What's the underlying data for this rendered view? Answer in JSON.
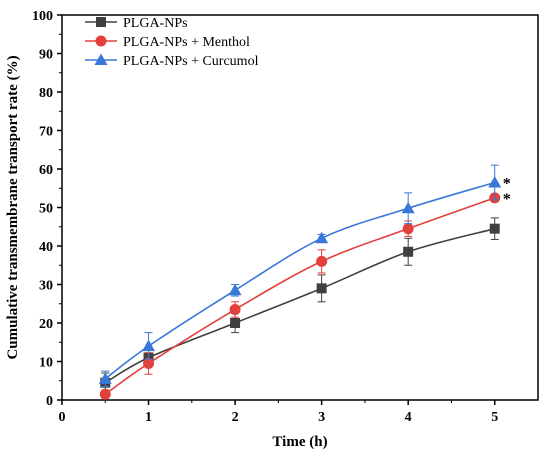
{
  "chart_data": {
    "type": "line",
    "xlabel": "Time (h)",
    "ylabel": "Cumulative transmembrane transport rate (%)",
    "xlim": [
      0,
      5.5
    ],
    "ylim": [
      0,
      100
    ],
    "x_ticks": [
      "0",
      "1",
      "2",
      "3",
      "4",
      "5"
    ],
    "y_ticks": [
      "0",
      "10",
      "20",
      "30",
      "40",
      "50",
      "60",
      "70",
      "80",
      "90",
      "100"
    ],
    "grid": false,
    "legend_position": "top-left",
    "series": [
      {
        "name": "PLGA-NPs",
        "color": "#404040",
        "marker": "square",
        "x": [
          0.5,
          1,
          2,
          3,
          4,
          5
        ],
        "y": [
          4.5,
          11,
          20,
          29,
          38.5,
          44.5
        ],
        "err": [
          2.5,
          2,
          2.5,
          3.5,
          3.5,
          2.8
        ]
      },
      {
        "name": "PLGA-NPs + Menthol",
        "color": "#e3403c",
        "marker": "circle",
        "x": [
          0.5,
          1,
          2,
          3,
          4,
          5
        ],
        "y": [
          1.5,
          9.5,
          23.5,
          36,
          44.5,
          52.5
        ],
        "err": [
          1,
          2.8,
          2,
          3,
          2,
          0.8
        ]
      },
      {
        "name": "PLGA-NPs + Curcumol",
        "color": "#3a78d8",
        "marker": "triangle",
        "x": [
          0.5,
          1,
          2,
          3,
          4,
          5
        ],
        "y": [
          5.5,
          14,
          28.5,
          42,
          49.8,
          56.5
        ],
        "err": [
          2,
          3.5,
          1.5,
          1,
          4,
          4.5
        ]
      }
    ],
    "annotations": [
      {
        "text": "*",
        "series": 1
      },
      {
        "text": "*",
        "series": 2
      }
    ]
  }
}
